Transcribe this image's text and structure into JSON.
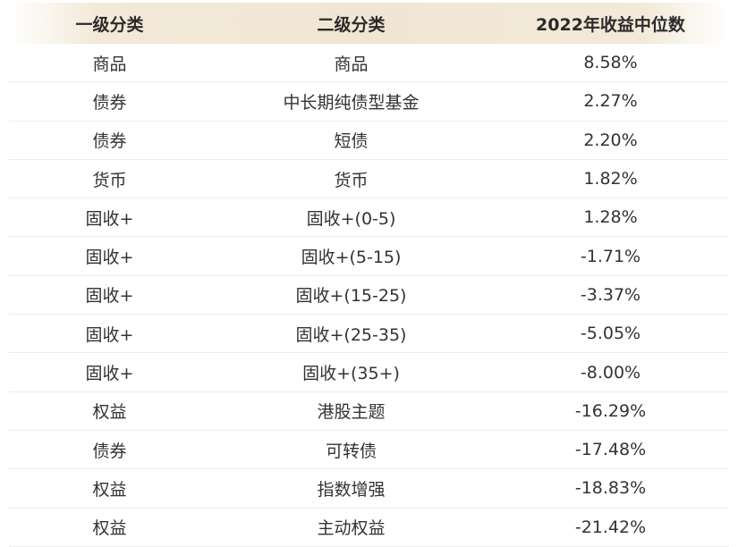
{
  "table": {
    "header": [
      "一级分类",
      "二级分类",
      "2022年收益中位数"
    ],
    "rows": [
      [
        "商品",
        "商品",
        "8.58%"
      ],
      [
        "债券",
        "中长期纯债型基金",
        "2.27%"
      ],
      [
        "债券",
        "短债",
        "2.20%"
      ],
      [
        "货币",
        "货币",
        "1.82%"
      ],
      [
        "固收+",
        "固收+(0-5)",
        "1.28%"
      ],
      [
        "固收+",
        "固收+(5-15)",
        "-1.71%"
      ],
      [
        "固收+",
        "固收+(15-25)",
        "-3.37%"
      ],
      [
        "固收+",
        "固收+(25-35)",
        "-5.05%"
      ],
      [
        "固收+",
        "固收+(35+)",
        "-8.00%"
      ],
      [
        "权益",
        "港股主题",
        "-16.29%"
      ],
      [
        "债券",
        "可转债",
        "-17.48%"
      ],
      [
        "权益",
        "指数增强",
        "-18.83%"
      ],
      [
        "权益",
        "主动权益",
        "-21.42%"
      ]
    ]
  }
}
